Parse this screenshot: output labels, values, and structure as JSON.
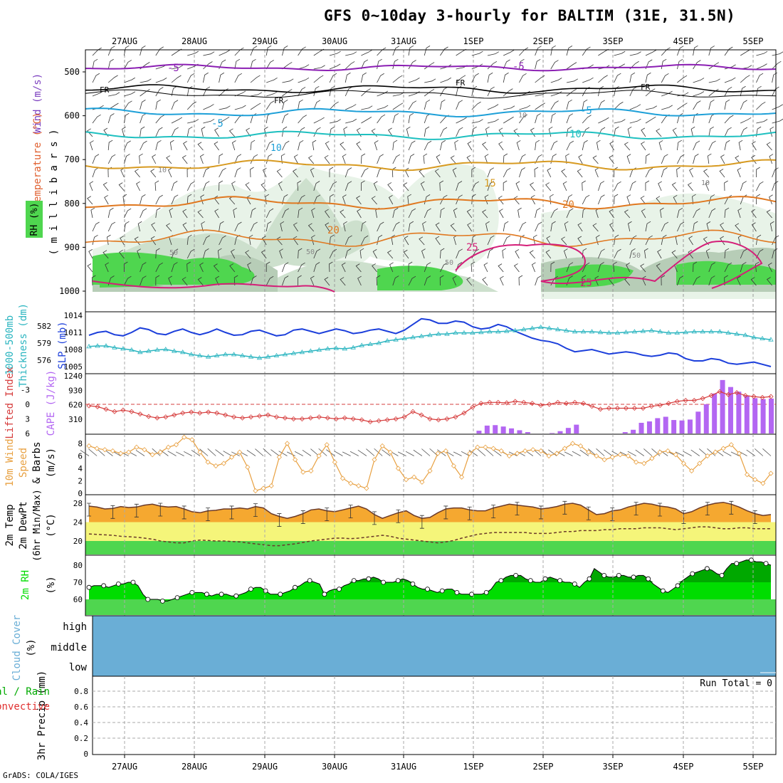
{
  "title": "GFS 0~10day 3-hourly for BALTIM (31E, 31.5N)",
  "credit": "GrADS: COLA/IGES",
  "colors": {
    "wind_label": "#7b3fbf",
    "temp_label": "#e06030",
    "rh_label": "#00aa00",
    "sfc_green": "#4fd64f",
    "rh_green": "#00dd00",
    "cloud": "#6aaed6",
    "cape": "#b366f2",
    "li": "#d63c3c",
    "slp": "#1c3fdb",
    "thick": "#2bb5c0",
    "wind10": "#e8a040",
    "t2m": "#f5a830",
    "dew": "#f5f57a",
    "precip_text": "#00aa00",
    "conv_text": "#e03030"
  },
  "chart_data": [
    {
      "type": "heatmap",
      "panel": "upper-air",
      "x_tick_labels": [
        "27AUG",
        "28AUG",
        "29AUG",
        "30AUG",
        "31AUG",
        "1SEP",
        "2SEP",
        "3SEP",
        "4SEP",
        "5SEP"
      ],
      "y_label": "millibars",
      "y_ticks": [
        500,
        600,
        700,
        800,
        900,
        1000
      ],
      "legend": [
        "RH (%)",
        "Temperature (°C)",
        "Wind (m/s)"
      ],
      "contour_labels": [
        "-5",
        "-5",
        "FR",
        "FR",
        "FR",
        "FR",
        "-5",
        "-5",
        "10",
        "10",
        "15",
        "20",
        "20",
        "25",
        "25",
        "10",
        "10",
        "10",
        "50",
        "50",
        "50",
        "50"
      ]
    },
    {
      "type": "line",
      "panel": "slp-thickness",
      "left_label": "1000-500mb Thickness (dm)",
      "right_label": "SLP (mb)",
      "left_ticks": [
        582,
        579,
        576
      ],
      "right_ticks": [
        1014,
        1011,
        1008,
        1005
      ],
      "series": [
        {
          "name": "SLP (mb)",
          "values": [
            1010.5,
            1011.0,
            1011.2,
            1010.6,
            1010.4,
            1011.0,
            1011.8,
            1011.5,
            1010.8,
            1010.6,
            1011.2,
            1011.6,
            1011.0,
            1010.6,
            1011.0,
            1011.6,
            1011.0,
            1010.5,
            1010.6,
            1011.2,
            1011.4,
            1010.9,
            1010.4,
            1010.6,
            1011.4,
            1011.6,
            1011.2,
            1010.8,
            1011.2,
            1011.6,
            1011.3,
            1010.8,
            1011.0,
            1011.4,
            1011.6,
            1011.2,
            1010.8,
            1011.4,
            1012.4,
            1013.4,
            1013.2,
            1012.6,
            1012.6,
            1013.0,
            1012.8,
            1012.0,
            1011.6,
            1011.8,
            1012.4,
            1012.0,
            1011.2,
            1010.6,
            1010.0,
            1009.6,
            1009.4,
            1009.0,
            1008.2,
            1007.6,
            1007.8,
            1008.0,
            1007.6,
            1007.2,
            1007.4,
            1007.6,
            1007.4,
            1007.0,
            1006.8,
            1007.0,
            1007.4,
            1007.2,
            1006.4,
            1006.0,
            1006.0,
            1006.4,
            1006.2,
            1005.6,
            1005.4,
            1005.6,
            1005.8,
            1005.4,
            1005.0
          ]
        },
        {
          "name": "1000-500mb Thickness (dm)",
          "values": [
            578.4,
            578.5,
            578.5,
            578.2,
            578.0,
            577.8,
            577.4,
            577.6,
            577.8,
            577.9,
            577.6,
            577.4,
            577.0,
            576.8,
            576.6,
            576.8,
            577.0,
            577.0,
            576.8,
            576.6,
            576.4,
            576.6,
            576.8,
            577.0,
            577.2,
            577.4,
            577.6,
            577.8,
            578.0,
            578.1,
            578.0,
            578.2,
            578.6,
            578.8,
            579.0,
            579.4,
            579.6,
            579.8,
            580.0,
            580.2,
            580.4,
            580.6,
            580.6,
            580.8,
            580.8,
            580.8,
            580.9,
            581.0,
            581.0,
            581.1,
            581.2,
            581.4,
            581.6,
            581.8,
            581.6,
            581.4,
            581.2,
            581.0,
            581.0,
            581.0,
            580.9,
            580.8,
            580.8,
            580.9,
            581.0,
            581.1,
            581.2,
            581.0,
            580.8,
            580.8,
            580.9,
            581.0,
            581.0,
            581.0,
            581.0,
            580.8,
            580.6,
            580.4,
            580.0,
            579.8,
            579.6
          ]
        }
      ]
    },
    {
      "type": "bar",
      "panel": "cape-li",
      "left_label": "Lifted Index",
      "right_label": "CAPE (J/kg)",
      "li_ticks": [
        -3,
        0,
        3,
        6
      ],
      "cape_ticks": [
        1240,
        930,
        620,
        310
      ],
      "series": [
        {
          "name": "Lifted Index",
          "values": [
            0.3,
            0.5,
            1.0,
            1.5,
            1.2,
            1.5,
            2.0,
            2.5,
            2.8,
            2.6,
            2.2,
            1.8,
            1.6,
            1.8,
            1.6,
            1.8,
            2.2,
            2.6,
            2.8,
            2.6,
            2.4,
            2.2,
            2.6,
            2.8,
            3.0,
            3.0,
            2.8,
            2.6,
            2.8,
            3.0,
            2.8,
            3.0,
            3.2,
            3.6,
            3.4,
            3.2,
            3.0,
            2.6,
            1.5,
            2.2,
            3.0,
            3.2,
            3.0,
            2.6,
            1.8,
            0.6,
            -0.2,
            -0.4,
            -0.4,
            -0.3,
            -0.6,
            -0.4,
            -0.2,
            0.2,
            0.0,
            -0.4,
            -0.2,
            -0.4,
            -0.2,
            0.4,
            1.0,
            0.8,
            0.8,
            0.8,
            0.8,
            0.8,
            0.4,
            0.2,
            -0.2,
            -0.6,
            -0.8,
            -0.8,
            -1.2,
            -1.8,
            -2.6,
            -2.0,
            -2.4,
            -1.8,
            -1.6,
            -1.4,
            -1.6
          ]
        },
        {
          "name": "CAPE (J/kg)",
          "values": [
            0,
            0,
            0,
            0,
            0,
            0,
            0,
            0,
            0,
            0,
            0,
            0,
            0,
            0,
            0,
            0,
            0,
            0,
            0,
            0,
            0,
            0,
            0,
            0,
            0,
            0,
            0,
            0,
            0,
            0,
            0,
            0,
            0,
            0,
            0,
            0,
            0,
            0,
            0,
            0,
            0,
            0,
            0,
            0,
            0,
            0,
            0,
            0,
            60,
            170,
            180,
            150,
            110,
            70,
            30,
            0,
            0,
            10,
            50,
            120,
            190,
            0,
            0,
            0,
            0,
            0,
            30,
            80,
            230,
            260,
            330,
            360,
            290,
            280,
            300,
            470,
            630,
            860,
            1150,
            1000,
            900,
            820,
            760,
            740,
            750
          ]
        }
      ]
    },
    {
      "type": "line",
      "panel": "wind10",
      "y_label": "10m Wind Speed & Barbs (m/s)",
      "y_ticks": [
        0,
        2,
        4,
        6,
        8
      ],
      "values": [
        7.6,
        7.2,
        7.0,
        6.8,
        6.4,
        6.6,
        7.4,
        7.0,
        6.2,
        6.6,
        7.4,
        7.8,
        9.0,
        8.6,
        6.6,
        5.0,
        4.4,
        4.8,
        5.8,
        6.6,
        4.2,
        0.4,
        0.8,
        1.2,
        5.8,
        8.0,
        5.4,
        3.4,
        3.6,
        6.0,
        7.8,
        5.0,
        2.4,
        1.6,
        1.2,
        0.8,
        5.4,
        7.6,
        6.6,
        4.0,
        2.2,
        2.6,
        1.8,
        3.6,
        6.4,
        6.8,
        4.4,
        2.6,
        6.4,
        7.4,
        7.4,
        7.2,
        6.8,
        6.0,
        6.4,
        6.8,
        7.0,
        6.8,
        6.0,
        6.4,
        7.2,
        8.0,
        7.6,
        6.6,
        6.0,
        5.4,
        5.8,
        6.2,
        6.0,
        5.0,
        4.8,
        5.6,
        6.6,
        6.8,
        6.2,
        4.8,
        3.6,
        4.8,
        6.0,
        6.6,
        7.2,
        7.8,
        6.4,
        3.0,
        2.2,
        1.6,
        3.2
      ]
    },
    {
      "type": "area",
      "panel": "temp",
      "y_label": "2m Temp 2m DewPt (6hr Min/Max) (°C)",
      "y_ticks": [
        20,
        24,
        28
      ],
      "series": [
        {
          "name": "2m Temp",
          "values": [
            27.4,
            27.2,
            26.8,
            26.9,
            27.3,
            27.1,
            27.2,
            27.6,
            27.8,
            27.4,
            27.2,
            27.3,
            26.8,
            26.2,
            26.0,
            26.4,
            26.5,
            26.8,
            26.8,
            27.0,
            26.8,
            27.3,
            27.0,
            25.8,
            25.2,
            24.8,
            25.2,
            25.8,
            26.6,
            26.8,
            26.4,
            26.2,
            26.6,
            27.0,
            27.4,
            26.8,
            25.6,
            24.8,
            25.4,
            26.0,
            26.4,
            25.4,
            24.8,
            25.0,
            26.0,
            26.8,
            27.0,
            27.0,
            26.6,
            26.4,
            26.4,
            27.0,
            27.4,
            27.8,
            27.6,
            27.4,
            27.2,
            26.8,
            27.0,
            27.3,
            27.8,
            28.0,
            27.6,
            26.6,
            25.6,
            25.8,
            26.4,
            26.6,
            27.2,
            27.6,
            28.0,
            27.8,
            27.4,
            27.2,
            26.8,
            25.8,
            26.2,
            27.0,
            27.6,
            28.0,
            28.2,
            27.8,
            27.2,
            26.4,
            25.8,
            25.4,
            25.6
          ]
        },
        {
          "name": "2m DewPt",
          "values": [
            21.5,
            21.4,
            21.3,
            21.2,
            21.0,
            20.9,
            20.8,
            20.6,
            20.4,
            20.0,
            19.8,
            19.6,
            19.6,
            20.0,
            20.2,
            20.1,
            20.0,
            20.0,
            19.9,
            19.8,
            19.6,
            19.4,
            19.2,
            19.0,
            19.0,
            19.2,
            19.4,
            19.7,
            20.0,
            20.2,
            20.4,
            20.6,
            20.6,
            20.5,
            20.6,
            20.8,
            21.0,
            21.2,
            21.0,
            20.6,
            20.4,
            20.2,
            20.0,
            19.8,
            19.6,
            19.8,
            20.1,
            20.6,
            21.0,
            21.4,
            21.6,
            21.8,
            21.8,
            21.8,
            21.8,
            21.8,
            21.6,
            21.6,
            21.6,
            21.8,
            22.0,
            22.0,
            22.2,
            22.2,
            22.2,
            22.4,
            22.4,
            22.6,
            22.6,
            22.6,
            22.8,
            22.8,
            22.8,
            22.6,
            22.4,
            22.6,
            22.8,
            23.0,
            23.0,
            22.8,
            22.6,
            22.6,
            22.8,
            22.8,
            22.6,
            22.6,
            22.6
          ]
        }
      ]
    },
    {
      "type": "area",
      "panel": "rh",
      "y_label": "2m RH (%)",
      "y_ticks": [
        60,
        70,
        80
      ],
      "values": [
        67,
        68,
        68,
        68,
        67,
        68,
        69,
        69,
        70,
        70,
        68,
        63,
        60,
        60,
        60,
        59,
        59,
        60,
        61,
        62,
        63,
        64,
        64,
        64,
        63,
        62,
        63,
        63,
        63,
        62,
        62,
        63,
        64,
        66,
        67,
        67,
        65,
        63,
        63,
        63,
        64,
        65,
        67,
        68,
        70,
        71,
        70,
        69,
        63,
        65,
        66,
        66,
        68,
        69,
        71,
        71,
        72,
        72,
        73,
        72,
        70,
        70,
        70,
        71,
        72,
        71,
        69,
        67,
        66,
        66,
        65,
        64,
        65,
        66,
        66,
        64,
        63,
        63,
        63,
        63,
        63,
        64,
        66,
        70,
        71,
        73,
        74,
        74,
        74,
        72,
        71,
        70,
        70,
        72,
        73,
        72,
        71,
        70,
        70,
        69,
        67,
        70,
        72,
        78,
        76,
        74,
        73,
        73,
        74,
        74,
        73,
        73,
        74,
        74,
        72,
        69,
        67,
        65,
        64,
        66,
        68,
        71,
        73,
        75,
        76,
        77,
        78,
        77,
        75,
        74,
        78,
        81,
        81,
        82,
        83,
        83,
        82,
        82,
        81,
        80
      ]
    },
    {
      "type": "table",
      "panel": "cloud",
      "y_label": "Cloud Cover (%)",
      "rows": [
        "high",
        "middle",
        "low"
      ]
    },
    {
      "type": "bar",
      "panel": "precip",
      "y_label": "3hr Precip (mm)",
      "left_label_a": "Total / Rain",
      "left_label_b": "Convective",
      "y_ticks": [
        0,
        0.2,
        0.4,
        0.6,
        0.8
      ],
      "run_total_label": "Run Total = 0",
      "values": []
    }
  ],
  "labels": {
    "wind_label": "Wind (m/s)",
    "temp_label": "Temperature (°C)",
    "rh_label": "RH (%)",
    "mb_label": "( m i l l i b a r s )",
    "thick_label1": "1000-500mb",
    "thick_label2": "Thickness (dm)",
    "slp_label": "SLP (mb)",
    "li_label": "Lifted Index",
    "cape_label": "CAPE (J/kg)",
    "w10_label1": "10m Wind",
    "w10_label2": "Speed",
    "w10_label3": "& Barbs",
    "w10_unit": "(m/s)",
    "t_label1": "2m Temp",
    "t_label2": "2m DewPt",
    "t_label3": "(6hr Min/Max)",
    "t_unit": "(°C)",
    "rh2_label": "2m RH",
    "rh2_unit": "(%)",
    "cc_label": "Cloud Cover",
    "cc_unit": "(%)",
    "pr_label": "3hr Precip (mm)",
    "total_rain": "Total / Rain",
    "convective": "Convective",
    "run_total": "Run Total = 0"
  }
}
